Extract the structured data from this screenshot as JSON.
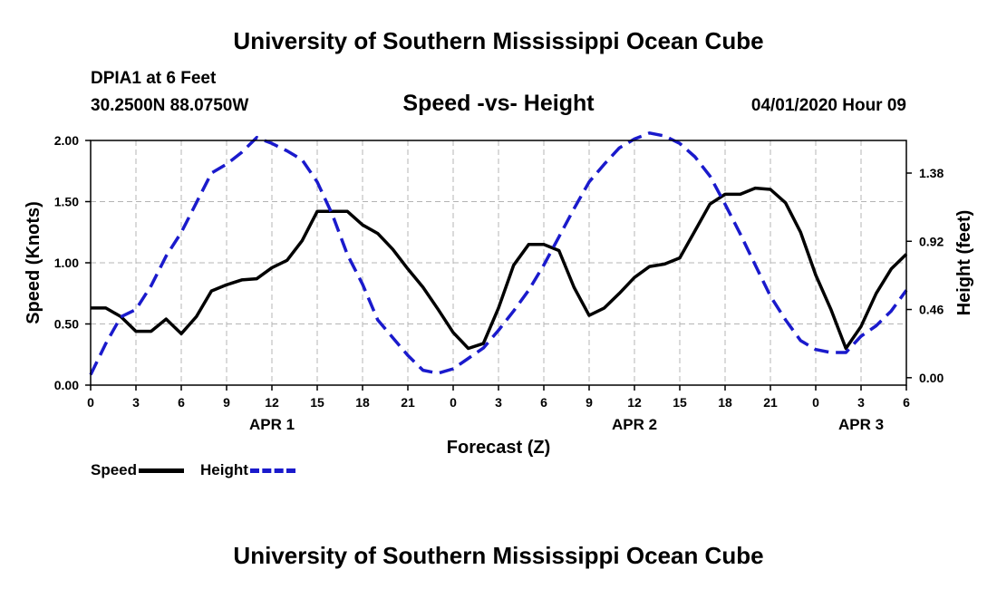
{
  "header": {
    "title": "University of Southern Mississippi Ocean Cube",
    "station": "DPIA1 at 6 Feet",
    "coordinates": "30.2500N 88.0750W",
    "subtitle": "Speed -vs- Height",
    "datetime": "04/01/2020 Hour 09"
  },
  "footer": {
    "title": "University of Southern Mississippi Ocean Cube"
  },
  "legend": {
    "speed_label": "Speed",
    "height_label": "Height"
  },
  "chart_data": {
    "type": "line",
    "title": "Speed -vs- Height",
    "xlabel": "Forecast (Z)",
    "ylabel_left": "Speed (Knots)",
    "ylabel_right": "Height (feet)",
    "x_unit": "hours since 2020-04-01 00Z",
    "xlim": [
      0,
      54
    ],
    "ylim_left": [
      0,
      2.0
    ],
    "ylim_right": [
      -0.05,
      1.6
    ],
    "x_ticks": [
      0,
      3,
      6,
      9,
      12,
      15,
      18,
      21,
      24,
      27,
      30,
      33,
      36,
      39,
      42,
      45,
      48,
      51,
      54
    ],
    "x_tick_labels": [
      "0",
      "3",
      "6",
      "9",
      "12",
      "15",
      "18",
      "21",
      "0",
      "3",
      "6",
      "9",
      "12",
      "15",
      "18",
      "21",
      "0",
      "3",
      "6"
    ],
    "date_labels": [
      {
        "x": 12,
        "label": "APR 1"
      },
      {
        "x": 36,
        "label": "APR 2"
      },
      {
        "x": 51,
        "label": "APR 3"
      }
    ],
    "y_left_ticks": [
      0,
      0.5,
      1.0,
      1.5,
      2.0
    ],
    "y_left_tick_labels": [
      "0.00",
      "0.50",
      "1.00",
      "1.50",
      "2.00"
    ],
    "y_right_ticks": [
      0,
      0.46,
      0.92,
      1.38
    ],
    "y_right_tick_labels": [
      "0.00",
      "0.46",
      "0.92",
      "1.38"
    ],
    "grid": true,
    "series": [
      {
        "name": "Speed",
        "axis": "left",
        "color": "#000000",
        "style": "solid",
        "x": [
          0,
          1,
          2,
          3,
          4,
          5,
          6,
          7,
          8,
          9,
          10,
          11,
          12,
          13,
          14,
          15,
          16,
          17,
          18,
          19,
          20,
          21,
          22,
          23,
          24,
          25,
          26,
          27,
          28,
          29,
          30,
          31,
          32,
          33,
          34,
          35,
          36,
          37,
          38,
          39,
          40,
          41,
          42,
          43,
          44,
          45,
          46,
          47,
          48,
          49,
          50,
          51,
          52,
          53,
          54
        ],
        "values": [
          0.63,
          0.63,
          0.56,
          0.44,
          0.44,
          0.54,
          0.42,
          0.56,
          0.77,
          0.82,
          0.86,
          0.87,
          0.96,
          1.02,
          1.18,
          1.42,
          1.42,
          1.42,
          1.31,
          1.24,
          1.11,
          0.95,
          0.8,
          0.62,
          0.43,
          0.3,
          0.34,
          0.63,
          0.98,
          1.15,
          1.15,
          1.1,
          0.8,
          0.57,
          0.63,
          0.75,
          0.88,
          0.97,
          0.99,
          1.04,
          1.26,
          1.48,
          1.56,
          1.56,
          1.61,
          1.6,
          1.49,
          1.25,
          0.9,
          0.62,
          0.3,
          0.48,
          0.75,
          0.95,
          1.07
        ]
      },
      {
        "name": "Height",
        "axis": "right",
        "color": "#1a1acc",
        "style": "dashed",
        "x": [
          0,
          1,
          2,
          3,
          4,
          5,
          6,
          7,
          8,
          9,
          10,
          11,
          12,
          13,
          14,
          15,
          16,
          17,
          18,
          19,
          20,
          21,
          22,
          23,
          24,
          25,
          26,
          27,
          28,
          29,
          30,
          31,
          32,
          33,
          34,
          35,
          36,
          37,
          38,
          39,
          40,
          41,
          42,
          43,
          44,
          45,
          46,
          47,
          48,
          49,
          50,
          51,
          52,
          53,
          54
        ],
        "values": [
          0.02,
          0.23,
          0.41,
          0.46,
          0.62,
          0.82,
          0.98,
          1.18,
          1.38,
          1.44,
          1.52,
          1.62,
          1.58,
          1.53,
          1.47,
          1.32,
          1.1,
          0.83,
          0.63,
          0.39,
          0.27,
          0.15,
          0.05,
          0.03,
          0.06,
          0.13,
          0.2,
          0.32,
          0.45,
          0.59,
          0.76,
          0.95,
          1.14,
          1.32,
          1.44,
          1.55,
          1.61,
          1.65,
          1.63,
          1.58,
          1.49,
          1.36,
          1.17,
          0.97,
          0.76,
          0.55,
          0.39,
          0.25,
          0.19,
          0.17,
          0.17,
          0.28,
          0.35,
          0.45,
          0.59
        ]
      }
    ]
  }
}
